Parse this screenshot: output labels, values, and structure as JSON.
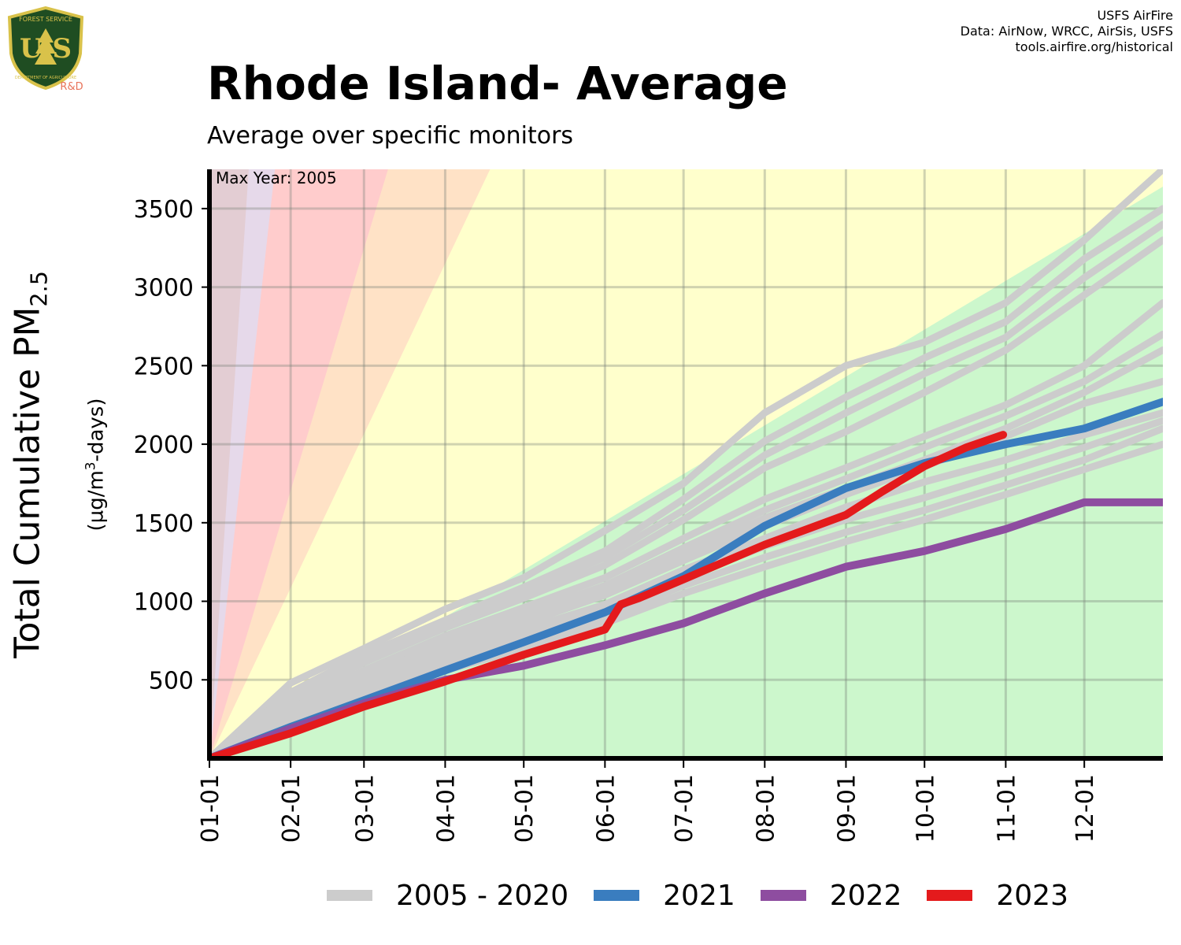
{
  "header": {
    "title": "Rhode Island- Average",
    "subtitle": "Average over specific monitors",
    "credits": [
      "USFS AirFire",
      "Data: AirNow, WRCC, AirSis, USFS",
      "tools.airfire.org/historical"
    ],
    "logo": {
      "top_text": "FOREST SERVICE",
      "main_text": "U S",
      "bottom_text": "DEPARTMENT OF AGRICULTURE",
      "badge": "R&D",
      "colors": {
        "shield": "#1f4d22",
        "rim": "#d9c24a",
        "badge": "#e8735a"
      }
    }
  },
  "axes": {
    "ylabel_main": "Total Cumulative PM",
    "ylabel_sub": "2.5",
    "ylabel_units_pre": "(µg/m",
    "ylabel_units_sup": "3",
    "ylabel_units_post": "-days)"
  },
  "annotation": "Max Year: 2005",
  "legend": [
    {
      "label": "2005 - 2020",
      "color": "#cccccc"
    },
    {
      "label": "2021",
      "color": "#3a7dbf"
    },
    {
      "label": "2022",
      "color": "#8e4da0"
    },
    {
      "label": "2023",
      "color": "#e41a1c"
    }
  ],
  "chart_data": {
    "type": "line",
    "x_unit": "day of year",
    "xlim": [
      1,
      365
    ],
    "ylim": [
      0,
      3750
    ],
    "x_ticks": [
      {
        "label": "01-01",
        "day": 1
      },
      {
        "label": "02-01",
        "day": 32
      },
      {
        "label": "03-01",
        "day": 60
      },
      {
        "label": "04-01",
        "day": 91
      },
      {
        "label": "05-01",
        "day": 121
      },
      {
        "label": "06-01",
        "day": 152
      },
      {
        "label": "07-01",
        "day": 182
      },
      {
        "label": "08-01",
        "day": 213
      },
      {
        "label": "09-01",
        "day": 244
      },
      {
        "label": "10-01",
        "day": 274
      },
      {
        "label": "11-01",
        "day": 305
      },
      {
        "label": "12-01",
        "day": 335
      }
    ],
    "y_ticks": [
      500,
      1000,
      1500,
      2000,
      2500,
      3000,
      3500
    ],
    "background_bands": [
      {
        "rate": 10,
        "color": "#ccf7cc"
      },
      {
        "rate": 35,
        "color": "#ffffcc"
      },
      {
        "rate": 55,
        "color": "#ffe2c6"
      },
      {
        "rate": 150,
        "color": "#ffcccc"
      },
      {
        "rate": 250,
        "color": "#e6d9ea"
      },
      {
        "rate": 9999,
        "color": "#e3cdd3"
      }
    ],
    "historical": {
      "label": "2005 - 2020",
      "color": "#cccccc",
      "series": [
        {
          "x": [
            1,
            32,
            60,
            91,
            121,
            152,
            182,
            213,
            244,
            274,
            305,
            335,
            365
          ],
          "y": [
            0,
            480,
            700,
            950,
            1150,
            1450,
            1750,
            2200,
            2500,
            2650,
            2900,
            3300,
            3750
          ]
        },
        {
          "x": [
            1,
            32,
            60,
            91,
            121,
            152,
            182,
            213,
            244,
            274,
            305,
            335,
            365
          ],
          "y": [
            0,
            420,
            660,
            880,
            1090,
            1320,
            1650,
            2020,
            2300,
            2550,
            2780,
            3180,
            3500
          ]
        },
        {
          "x": [
            1,
            32,
            60,
            91,
            121,
            152,
            182,
            213,
            244,
            274,
            305,
            335,
            365
          ],
          "y": [
            0,
            400,
            640,
            860,
            1060,
            1280,
            1580,
            1930,
            2200,
            2450,
            2680,
            3060,
            3400
          ]
        },
        {
          "x": [
            1,
            32,
            60,
            91,
            121,
            152,
            182,
            213,
            244,
            274,
            305,
            335,
            365
          ],
          "y": [
            0,
            380,
            610,
            830,
            1020,
            1230,
            1520,
            1850,
            2080,
            2330,
            2600,
            2950,
            3300
          ]
        },
        {
          "x": [
            1,
            32,
            60,
            91,
            121,
            152,
            182,
            213,
            244,
            274,
            305,
            335,
            365
          ],
          "y": [
            0,
            340,
            560,
            780,
            960,
            1150,
            1400,
            1650,
            1850,
            2050,
            2250,
            2500,
            2900
          ]
        },
        {
          "x": [
            1,
            32,
            60,
            91,
            121,
            152,
            182,
            213,
            244,
            274,
            305,
            335,
            365
          ],
          "y": [
            0,
            330,
            540,
            760,
            920,
            1100,
            1340,
            1580,
            1780,
            1980,
            2180,
            2400,
            2700
          ]
        },
        {
          "x": [
            1,
            32,
            60,
            91,
            121,
            152,
            182,
            213,
            244,
            274,
            305,
            335,
            365
          ],
          "y": [
            0,
            320,
            520,
            730,
            890,
            1070,
            1300,
            1530,
            1720,
            1900,
            2100,
            2330,
            2600
          ]
        },
        {
          "x": [
            1,
            32,
            60,
            91,
            121,
            152,
            182,
            213,
            244,
            274,
            305,
            335,
            365
          ],
          "y": [
            0,
            300,
            500,
            700,
            860,
            1040,
            1260,
            1480,
            1680,
            1860,
            2050,
            2260,
            2400
          ]
        },
        {
          "x": [
            1,
            32,
            60,
            91,
            121,
            152,
            182,
            213,
            244,
            274,
            305,
            335,
            365
          ],
          "y": [
            0,
            280,
            470,
            660,
            820,
            980,
            1200,
            1400,
            1600,
            1760,
            1900,
            2060,
            2200
          ]
        },
        {
          "x": [
            1,
            32,
            60,
            91,
            121,
            152,
            182,
            213,
            244,
            274,
            305,
            335,
            365
          ],
          "y": [
            0,
            260,
            440,
            620,
            780,
            940,
            1150,
            1350,
            1520,
            1660,
            1820,
            1980,
            2150
          ]
        },
        {
          "x": [
            1,
            32,
            60,
            91,
            121,
            152,
            182,
            213,
            244,
            274,
            305,
            335,
            365
          ],
          "y": [
            0,
            250,
            420,
            590,
            740,
            900,
            1100,
            1280,
            1440,
            1580,
            1740,
            1900,
            2100
          ]
        },
        {
          "x": [
            1,
            32,
            60,
            91,
            121,
            152,
            182,
            213,
            244,
            274,
            305,
            335,
            365
          ],
          "y": [
            0,
            230,
            400,
            560,
            700,
            860,
            1050,
            1220,
            1380,
            1520,
            1680,
            1840,
            2000
          ]
        }
      ]
    },
    "series": [
      {
        "name": "2021",
        "color": "#3a7dbf",
        "x": [
          1,
          32,
          60,
          91,
          121,
          152,
          182,
          213,
          244,
          274,
          305,
          335,
          365
        ],
        "y": [
          0,
          200,
          370,
          560,
          740,
          930,
          1160,
          1480,
          1720,
          1880,
          2000,
          2100,
          2270
        ]
      },
      {
        "name": "2022",
        "color": "#8e4da0",
        "x": [
          1,
          32,
          60,
          91,
          121,
          152,
          182,
          213,
          244,
          274,
          305,
          335,
          365
        ],
        "y": [
          0,
          190,
          350,
          500,
          590,
          720,
          860,
          1050,
          1220,
          1320,
          1460,
          1630,
          1630
        ]
      },
      {
        "name": "2023",
        "color": "#e41a1c",
        "x": [
          1,
          32,
          60,
          91,
          121,
          152,
          158,
          165,
          182,
          213,
          244,
          258,
          274,
          290,
          304
        ],
        "y": [
          0,
          160,
          330,
          490,
          660,
          820,
          980,
          1020,
          1140,
          1360,
          1550,
          1700,
          1860,
          1980,
          2060
        ]
      }
    ]
  }
}
